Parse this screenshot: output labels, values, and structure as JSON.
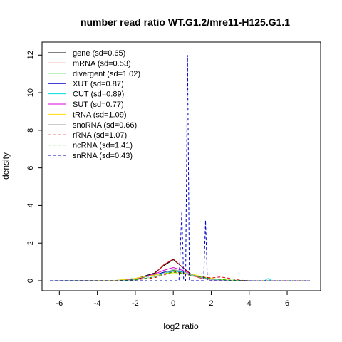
{
  "chart_data": {
    "type": "line",
    "title": "number read ratio WT.G1.2/mre11-H125.G1.1",
    "xlabel": "log2 ratio",
    "ylabel": "density",
    "xlim": [
      -6.5,
      7.2
    ],
    "ylim": [
      0,
      12.2
    ],
    "xticks": [
      -6,
      -4,
      -2,
      0,
      2,
      4,
      6
    ],
    "yticks": [
      0,
      2,
      4,
      6,
      8,
      10,
      12
    ],
    "legend_position": "top-left",
    "series": [
      {
        "name": "gene (sd=0.65)",
        "color": "#000000",
        "dash": "solid",
        "x": [
          -6.5,
          -3,
          -2,
          -1,
          -0.5,
          0,
          0.5,
          1,
          1.5,
          2,
          3,
          4,
          7.2
        ],
        "y": [
          0,
          0.01,
          0.1,
          0.4,
          0.8,
          1.12,
          0.7,
          0.3,
          0.15,
          0.08,
          0.02,
          0,
          0
        ]
      },
      {
        "name": "mRNA (sd=0.53)",
        "color": "#dd0000",
        "dash": "solid",
        "x": [
          -6.5,
          -3,
          -2,
          -1,
          -0.5,
          0,
          0.5,
          1,
          1.5,
          2,
          3,
          4,
          7.2
        ],
        "y": [
          0,
          0,
          0.05,
          0.35,
          0.85,
          1.15,
          0.7,
          0.28,
          0.12,
          0.05,
          0.01,
          0,
          0
        ]
      },
      {
        "name": "divergent (sd=1.02)",
        "color": "#00bb00",
        "dash": "solid",
        "x": [
          -6.5,
          -3,
          -2,
          -1,
          -0.5,
          0,
          0.5,
          1,
          1.5,
          2,
          3,
          4,
          7.2
        ],
        "y": [
          0,
          0.02,
          0.12,
          0.3,
          0.45,
          0.55,
          0.48,
          0.35,
          0.2,
          0.1,
          0.03,
          0,
          0
        ]
      },
      {
        "name": "XUT (sd=0.87)",
        "color": "#0000cc",
        "dash": "solid",
        "x": [
          -6.5,
          -3,
          -2,
          -1,
          -0.5,
          0,
          0.5,
          1,
          1.5,
          2,
          3,
          4,
          7.2
        ],
        "y": [
          0,
          0.01,
          0.1,
          0.3,
          0.45,
          0.52,
          0.45,
          0.3,
          0.15,
          0.07,
          0.02,
          0,
          0
        ]
      },
      {
        "name": "CUT (sd=0.89)",
        "color": "#00dddd",
        "dash": "solid",
        "x": [
          -6.5,
          -3,
          -2,
          -1,
          -0.5,
          0,
          0.5,
          1,
          1.5,
          2,
          3,
          4,
          4.8,
          5,
          5.2,
          7.2
        ],
        "y": [
          0,
          0.02,
          0.12,
          0.3,
          0.4,
          0.5,
          0.45,
          0.32,
          0.18,
          0.08,
          0.02,
          0,
          0,
          0.12,
          0,
          0
        ]
      },
      {
        "name": "SUT (sd=0.77)",
        "color": "#dd00dd",
        "dash": "solid",
        "x": [
          -6.5,
          -3,
          -2,
          -1,
          -0.5,
          0,
          0.5,
          1,
          1.5,
          2,
          3,
          4,
          7.2
        ],
        "y": [
          0,
          0.01,
          0.1,
          0.35,
          0.55,
          0.7,
          0.55,
          0.3,
          0.15,
          0.05,
          0.01,
          0,
          0
        ]
      },
      {
        "name": "tRNA (sd=1.09)",
        "color": "#ffdd00",
        "dash": "solid",
        "x": [
          -6.5,
          -3,
          -2,
          -1.5,
          -1,
          -0.5,
          0,
          0.5,
          1,
          1.5,
          2,
          3,
          4,
          7.2
        ],
        "y": [
          0,
          0.02,
          0.12,
          0.22,
          0.3,
          0.38,
          0.42,
          0.4,
          0.35,
          0.22,
          0.12,
          0.03,
          0,
          0
        ]
      },
      {
        "name": "snoRNA (sd=0.66)",
        "color": "#bbbbbb",
        "dash": "solid",
        "x": [
          -6.5,
          -3,
          -2,
          -1,
          -0.5,
          0,
          0.5,
          1,
          1.5,
          2,
          3,
          4,
          7.2
        ],
        "y": [
          0,
          0,
          0.05,
          0.2,
          0.4,
          0.6,
          0.5,
          0.3,
          0.15,
          0.05,
          0.01,
          0,
          0
        ]
      },
      {
        "name": "rRNA (sd=1.07)",
        "color": "#dd0000",
        "dash": "dashed",
        "x": [
          -6.5,
          -3,
          -2,
          -1,
          -0.5,
          0,
          0.5,
          1,
          1.5,
          2,
          2.5,
          3,
          3.5,
          4,
          7.2
        ],
        "y": [
          0,
          0,
          0.05,
          0.15,
          0.3,
          0.5,
          0.4,
          0.25,
          0.2,
          0.15,
          0.2,
          0.12,
          0.03,
          0,
          0
        ]
      },
      {
        "name": "ncRNA (sd=1.41)",
        "color": "#00bb00",
        "dash": "dashed",
        "x": [
          -6.5,
          -3,
          -2,
          -1,
          -0.5,
          0,
          0.5,
          1,
          1.5,
          2,
          3,
          4,
          7.2
        ],
        "y": [
          0,
          0,
          0.05,
          0.2,
          0.35,
          0.45,
          0.38,
          0.28,
          0.18,
          0.1,
          0.03,
          0,
          0
        ]
      },
      {
        "name": "snRNA (sd=0.43)",
        "color": "#0000cc",
        "dash": "dashed",
        "x": [
          -6.5,
          0.3,
          0.45,
          0.55,
          0.65,
          0.75,
          0.85,
          1.6,
          1.7,
          1.8,
          7.2
        ],
        "y": [
          0,
          0,
          3.7,
          0,
          0,
          12.0,
          0,
          0,
          3.2,
          0,
          0
        ]
      }
    ]
  }
}
